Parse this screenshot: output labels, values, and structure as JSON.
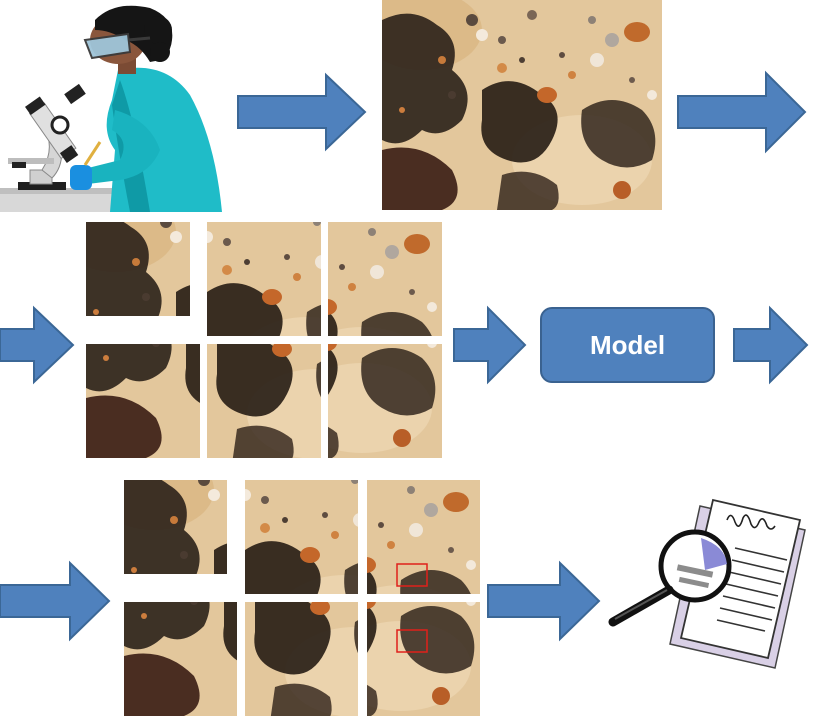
{
  "colors": {
    "arrow_fill": "#4f81bd",
    "arrow_stroke": "#3b6796",
    "model_fill": "#4f81bd",
    "detection_box": "#e0201b",
    "sample_background": "#e4c89d"
  },
  "icons": [
    "scientist-microscope-icon",
    "arrow-right-icon",
    "magnifier-report-icon"
  ],
  "steps": {
    "sample_image": "microscope-sample",
    "tiles_per_grid": 6,
    "model": {
      "label": "Model"
    },
    "output_detections": 2
  }
}
